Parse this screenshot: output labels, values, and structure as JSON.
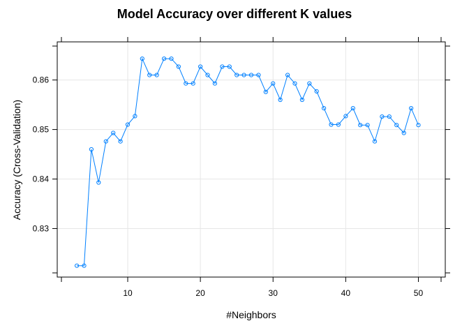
{
  "chart_data": {
    "type": "line",
    "title": "Model Accuracy over different K values",
    "xlabel": "#Neighbors",
    "ylabel": "Accuracy (Cross-Validation)",
    "xlim": [
      0.3,
      53.7
    ],
    "ylim": [
      0.8202,
      0.8677
    ],
    "xticks": [
      10,
      20,
      30,
      40,
      50
    ],
    "yticks": [
      0.83,
      0.84,
      0.85,
      0.86
    ],
    "xtick_labels": [
      "10",
      "20",
      "30",
      "40",
      "50"
    ],
    "ytick_labels": [
      "0.83",
      "0.84",
      "0.85",
      "0.86"
    ],
    "grid": true,
    "series": [
      {
        "color": "#0080ff",
        "marker": "open-circle",
        "x": [
          3,
          4,
          5,
          6,
          7,
          8,
          9,
          10,
          11,
          12,
          13,
          14,
          15,
          16,
          17,
          18,
          19,
          20,
          21,
          22,
          23,
          24,
          25,
          26,
          27,
          28,
          29,
          30,
          31,
          32,
          33,
          34,
          35,
          36,
          37,
          38,
          39,
          40,
          41,
          42,
          43,
          44,
          45,
          46,
          47,
          48,
          49,
          50
        ],
        "values": [
          0.8225,
          0.8225,
          0.846,
          0.8393,
          0.8476,
          0.8493,
          0.8476,
          0.851,
          0.8527,
          0.8643,
          0.861,
          0.861,
          0.8643,
          0.8643,
          0.8627,
          0.8593,
          0.8593,
          0.8627,
          0.861,
          0.8593,
          0.8627,
          0.8627,
          0.861,
          0.861,
          0.861,
          0.861,
          0.8576,
          0.8593,
          0.856,
          0.861,
          0.8593,
          0.856,
          0.8593,
          0.8577,
          0.8543,
          0.851,
          0.851,
          0.8527,
          0.8543,
          0.8509,
          0.8509,
          0.8476,
          0.8526,
          0.8526,
          0.8509,
          0.8493,
          0.8543,
          0.8509
        ]
      }
    ]
  }
}
